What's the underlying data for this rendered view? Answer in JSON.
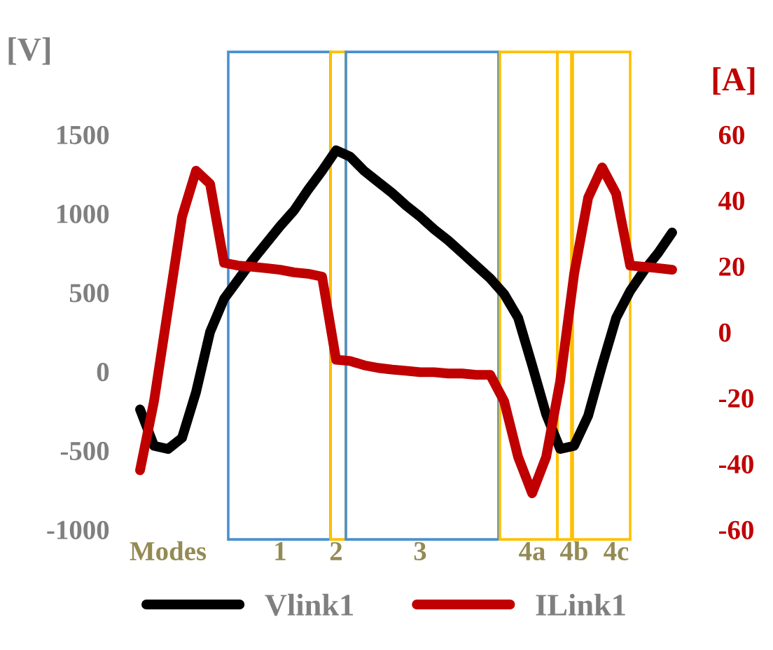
{
  "chart_data": {
    "type": "line",
    "ylabel": "[V]",
    "y2label": "[A]",
    "categories": [
      null,
      null,
      "Modes",
      null,
      null,
      null,
      null,
      null,
      null,
      null,
      "1",
      null,
      null,
      null,
      "2",
      null,
      null,
      null,
      null,
      null,
      "3",
      null,
      null,
      null,
      null,
      null,
      null,
      null,
      "4a",
      null,
      null,
      "4b",
      null,
      null,
      "4c",
      null,
      null,
      null,
      null
    ],
    "series": [
      {
        "name": "Vlink1",
        "color": "#000000",
        "values": [
          -240,
          -470,
          -490,
          -420,
          -130,
          250,
          460,
          580,
          700,
          810,
          920,
          1020,
          1150,
          1270,
          1400,
          1360,
          1270,
          1200,
          1130,
          1050,
          980,
          900,
          830,
          750,
          670,
          590,
          490,
          340,
          40,
          -270,
          -490,
          -470,
          -280,
          40,
          340,
          510,
          640,
          750,
          880
        ]
      },
      {
        "name": "ILink1",
        "color": "#c00000",
        "axis": "y2",
        "values": [
          -42,
          -21,
          7,
          35,
          49,
          45,
          21,
          20.2,
          19.8,
          19.4,
          18.9,
          18.1,
          17.7,
          16.8,
          -8.4,
          -8.8,
          -10.1,
          -10.9,
          -11.4,
          -11.8,
          -12.2,
          -12.2,
          -12.6,
          -12.6,
          -13,
          -13,
          -21,
          -38,
          -49,
          -38,
          -15,
          17.7,
          40.8,
          50,
          42,
          20.2,
          19.8,
          19.4,
          18.9
        ]
      }
    ],
    "ylim": [
      -1000,
      1500
    ],
    "yticks": [
      -1000,
      -500,
      0,
      500,
      1000,
      1500
    ],
    "y2lim": [
      -60,
      60
    ],
    "y2ticks": [
      -60,
      -40,
      -20,
      0,
      20,
      40,
      60
    ],
    "legend": "bottom",
    "grid": false,
    "line_style": "solid",
    "marker": "none"
  }
}
